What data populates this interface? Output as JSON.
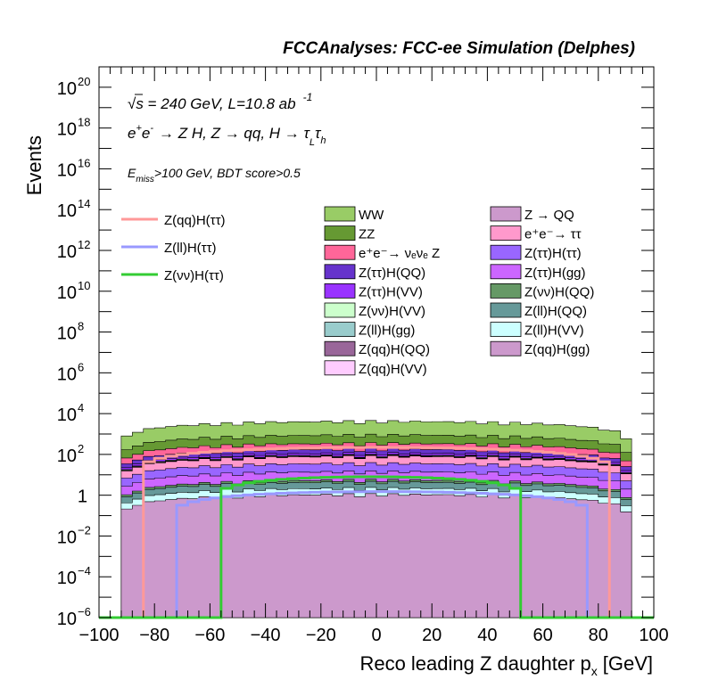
{
  "header": {
    "title": "FCCAnalyses: FCC-ee Simulation (Delphes)"
  },
  "annotations": {
    "energy": "√s = 240 GeV, L=10.8 ab",
    "energy_sup": "-1",
    "process": "e⁺e⁻ → Z H, Z → qq, H → τₗτₕ",
    "process_base": "e",
    "process_plus": "+",
    "process_e2": "e",
    "process_minus": "-",
    "process_rest": "→ Z H, Z → qq, H → τ",
    "process_L": "L",
    "process_tau": "τ",
    "process_h": "h",
    "selection_E": "E",
    "selection_sub": "miss",
    "selection_rest": ">100 GeV, BDT score>0.5"
  },
  "chart_data": {
    "type": "area",
    "title": "FCCAnalyses: FCC-ee Simulation (Delphes)",
    "xlabel": "Reco leading Z daughter p",
    "xlabel_sub": "x",
    "xlabel_unit": "[GeV]",
    "ylabel": "Events",
    "xlim": [
      -100,
      100
    ],
    "ylim": [
      1e-06,
      1e+21
    ],
    "ylog": true,
    "xticks": [
      "−100",
      "−80",
      "−60",
      "−40",
      "−20",
      "0",
      "20",
      "40",
      "60",
      "80",
      "100"
    ],
    "yticks": [
      {
        "base": "10",
        "exp": "−6"
      },
      {
        "base": "10",
        "exp": "−4"
      },
      {
        "base": "10",
        "exp": "−2"
      },
      {
        "base": "1",
        "exp": ""
      },
      {
        "base": "10",
        "exp": "2"
      },
      {
        "base": "10",
        "exp": "4"
      },
      {
        "base": "10",
        "exp": "6"
      },
      {
        "base": "10",
        "exp": "8"
      },
      {
        "base": "10",
        "exp": "10"
      },
      {
        "base": "10",
        "exp": "12"
      },
      {
        "base": "10",
        "exp": "14"
      },
      {
        "base": "10",
        "exp": "16"
      },
      {
        "base": "10",
        "exp": "18"
      },
      {
        "base": "10",
        "exp": "20"
      }
    ],
    "grid": false,
    "legend_position": "top",
    "stacked_backgrounds": [
      {
        "name": "WW",
        "color": "#99cc66",
        "peak": 3000
      },
      {
        "name": "ZZ",
        "color": "#669933",
        "peak": 500
      },
      {
        "name": "e⁺e⁻→ νₑνₑ Z",
        "color": "#ff6699",
        "peak": 150
      },
      {
        "name": "Z(ττ)H(QQ)",
        "color": "#6633cc",
        "peak": 60
      },
      {
        "name": "Z(ττ)H(VV)",
        "color": "#9933ff",
        "peak": 20
      },
      {
        "name": "Z(νν)H(VV)",
        "color": "#ccffcc",
        "peak": 6
      },
      {
        "name": "Z(ll)H(gg)",
        "color": "#99cccc",
        "peak": 0.5
      },
      {
        "name": "Z(qq)H(QQ)",
        "color": "#996699",
        "peak": 2
      },
      {
        "name": "Z(qq)H(VV)",
        "color": "#ffccff",
        "peak": 3
      },
      {
        "name": "Z → QQ",
        "color": "#cc99cc",
        "peak": 0.6
      },
      {
        "name": "e⁺e⁻→ ττ",
        "color": "#ff99cc",
        "peak": 40
      },
      {
        "name": "Z(ττ)H(ττ)",
        "color": "#9966ff",
        "peak": 20
      },
      {
        "name": "Z(ττ)H(gg)",
        "color": "#cc66ff",
        "peak": 8
      },
      {
        "name": "Z(νν)H(QQ)",
        "color": "#669966",
        "peak": 1
      },
      {
        "name": "Z(ll)H(QQ)",
        "color": "#669999",
        "peak": 2
      },
      {
        "name": "Z(ll)H(VV)",
        "color": "#ccffff",
        "peak": 1
      },
      {
        "name": "Z(qq)H(gg)",
        "color": "#cc99cc",
        "peak": 1
      }
    ],
    "signals": [
      {
        "name": "Z(qq)H(ττ)",
        "color": "#ff9999",
        "x_range": [
          -84,
          84
        ],
        "peak": 220,
        "edge": 0.01
      },
      {
        "name": "Z(ll)H(ττ)",
        "color": "#9999ff",
        "x_range": [
          -72,
          76
        ],
        "peak": 1.5,
        "edge": 0.05
      },
      {
        "name": "Z(νν)H(ττ)",
        "color": "#33cc33",
        "x_range": [
          -56,
          52
        ],
        "peak": 8,
        "edge": 0.005
      }
    ]
  }
}
